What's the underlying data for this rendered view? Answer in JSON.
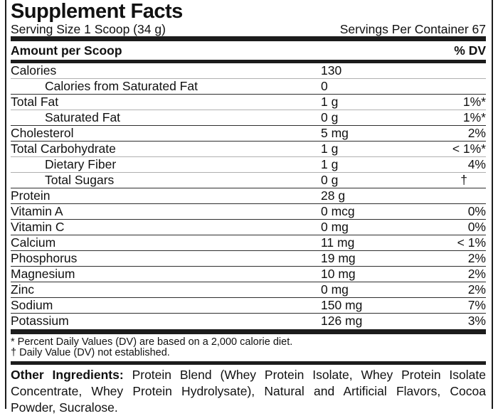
{
  "label": {
    "title": "Supplement Facts",
    "serving_size": "Serving Size 1 Scoop (34 g)",
    "servings_per_container": "Servings Per Container 67"
  },
  "table": {
    "header_left": "Amount per Scoop",
    "header_right": "% DV",
    "rows": [
      {
        "name": "Calories",
        "amount": "130",
        "dv": "",
        "sub": false
      },
      {
        "name": "Calories from Saturated Fat",
        "amount": "0",
        "dv": "",
        "sub": true
      },
      {
        "name": "Total Fat",
        "amount": "1 g",
        "dv": "1%*",
        "sub": false
      },
      {
        "name": "Saturated Fat",
        "amount": "0 g",
        "dv": "1%*",
        "sub": true
      },
      {
        "name": "Cholesterol",
        "amount": "5 mg",
        "dv": "2%",
        "sub": false
      },
      {
        "name": "Total Carbohydrate",
        "amount": "1 g",
        "dv": "< 1%*",
        "sub": false
      },
      {
        "name": "Dietary Fiber",
        "amount": "1 g",
        "dv": "4%",
        "sub": true
      },
      {
        "name": "Total Sugars",
        "amount": "0 g",
        "dv": "†",
        "sub": true
      },
      {
        "name": "Protein",
        "amount": "28 g",
        "dv": "",
        "sub": false
      },
      {
        "name": "Vitamin A",
        "amount": "0 mcg",
        "dv": "0%",
        "sub": false
      },
      {
        "name": "Vitamin C",
        "amount": "0 mg",
        "dv": "0%",
        "sub": false
      },
      {
        "name": "Calcium",
        "amount": "11 mg",
        "dv": "< 1%",
        "sub": false
      },
      {
        "name": "Phosphorus",
        "amount": "19 mg",
        "dv": "2%",
        "sub": false
      },
      {
        "name": "Magnesium",
        "amount": "10 mg",
        "dv": "2%",
        "sub": false
      },
      {
        "name": "Zinc",
        "amount": "0 mg",
        "dv": "2%",
        "sub": false
      },
      {
        "name": "Sodium",
        "amount": "150 mg",
        "dv": "7%",
        "sub": false
      },
      {
        "name": "Potassium",
        "amount": "126 mg",
        "dv": "3%",
        "sub": false
      }
    ]
  },
  "footnotes": [
    "* Percent Daily Values (DV) are based on a 2,000 calorie diet.",
    "† Daily Value (DV) not established."
  ],
  "other_ingredients": {
    "label": "Other Ingredients:",
    "text": "Protein Blend (Whey Protein Isolate, Whey Protein Isolate Concentrate, Whey Protein Hydrolysate), Natural and Artificial Flavors, Cocoa Powder, Sucralose."
  },
  "colors": {
    "background": "#ffffff",
    "text": "#111111",
    "bar": "#1c1c1c",
    "hairline": "#b0b0b0",
    "rule": "#2e2e2e"
  }
}
